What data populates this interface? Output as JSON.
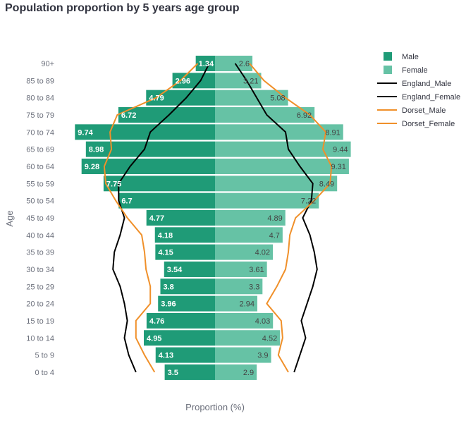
{
  "chart_data": {
    "type": "bar",
    "title": "Population proportion by 5 years age group",
    "xlabel": "Proportion (%)",
    "ylabel": "Age",
    "legend_position": "top-right",
    "categories": [
      "90+",
      "85 to 89",
      "80 to 84",
      "75 to 79",
      "70 to 74",
      "65 to 69",
      "60 to 64",
      "55 to 59",
      "50 to 54",
      "45 to 49",
      "40 to 44",
      "35 to 39",
      "30 to 34",
      "25 to 29",
      "20 to 24",
      "15 to 19",
      "10 to 14",
      "5 to 9",
      "0 to 4"
    ],
    "series": [
      {
        "name": "Male",
        "kind": "bar",
        "color": "#1f9b77",
        "values": [
          1.34,
          2.96,
          4.79,
          6.72,
          9.74,
          8.98,
          9.28,
          7.75,
          6.7,
          4.77,
          4.18,
          4.15,
          3.54,
          3.8,
          3.96,
          4.76,
          4.95,
          4.13,
          3.5
        ]
      },
      {
        "name": "Female",
        "kind": "bar",
        "color": "#66c2a5",
        "values": [
          2.6,
          3.21,
          5.08,
          6.92,
          8.91,
          9.44,
          9.31,
          8.49,
          7.22,
          4.89,
          4.7,
          4.02,
          3.61,
          3.3,
          2.94,
          4.03,
          4.52,
          3.9,
          2.9
        ]
      },
      {
        "name": "England_Male",
        "kind": "line",
        "color": "#000000",
        "values": [
          0.4,
          1.0,
          2.0,
          3.2,
          4.5,
          4.9,
          5.9,
          6.7,
          6.7,
          6.3,
          6.6,
          7.0,
          7.1,
          6.6,
          6.3,
          6.1,
          6.3,
          6.0,
          5.5
        ]
      },
      {
        "name": "England_Female",
        "kind": "line",
        "color": "#000000",
        "values": [
          1.4,
          2.2,
          2.9,
          3.6,
          4.9,
          5.1,
          5.9,
          6.8,
          6.7,
          6.1,
          6.6,
          6.9,
          7.1,
          6.8,
          6.4,
          6.0,
          6.3,
          5.9,
          5.5
        ]
      },
      {
        "name": "Dorset_Male",
        "kind": "line",
        "color": "#f0902a",
        "values": [
          1.2,
          2.4,
          4.1,
          6.8,
          7.3,
          7.2,
          7.7,
          7.6,
          6.9,
          6.1,
          5.1,
          4.9,
          4.8,
          4.5,
          4.5,
          5.5,
          5.5,
          4.9,
          4.2
        ]
      },
      {
        "name": "Dorset_Female",
        "kind": "line",
        "color": "#f0902a",
        "values": [
          2.4,
          3.4,
          4.9,
          6.6,
          7.7,
          7.5,
          8.1,
          8.0,
          6.9,
          5.6,
          5.2,
          5.1,
          4.9,
          4.3,
          3.6,
          4.6,
          4.7,
          4.4,
          5.1
        ]
      }
    ]
  }
}
